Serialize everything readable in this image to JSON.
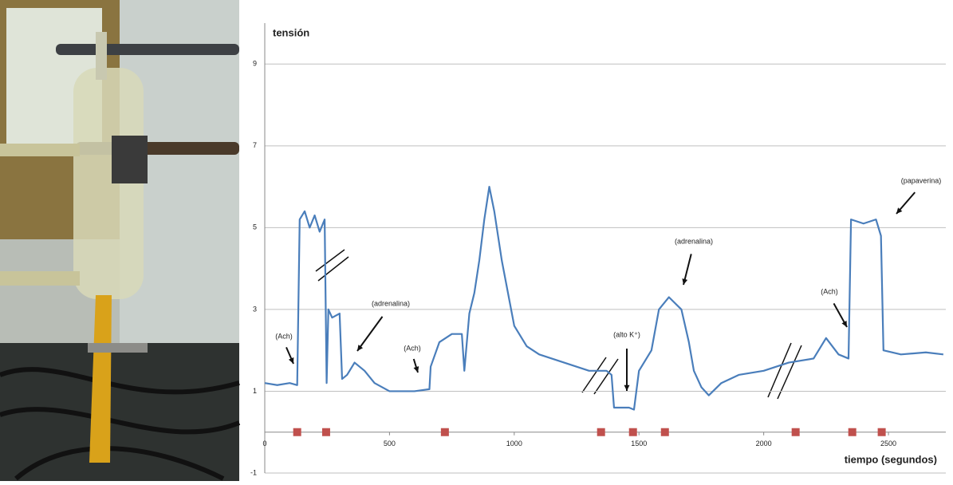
{
  "chart_data": {
    "type": "line",
    "ylabel": "tensión",
    "xlabel": "tiempo (segundos)",
    "x": [
      0,
      50,
      100,
      130,
      140,
      160,
      180,
      200,
      220,
      240,
      248,
      255,
      270,
      300,
      310,
      330,
      360,
      400,
      440,
      500,
      600,
      660,
      665,
      700,
      750,
      790,
      800,
      820,
      840,
      860,
      880,
      900,
      920,
      950,
      1000,
      1050,
      1100,
      1200,
      1300,
      1370,
      1390,
      1400,
      1460,
      1480,
      1500,
      1550,
      1580,
      1620,
      1670,
      1700,
      1720,
      1750,
      1780,
      1830,
      1900,
      2000,
      2100,
      2200,
      2250,
      2300,
      2340,
      2350,
      2400,
      2450,
      2470,
      2480,
      2550,
      2650,
      2720
    ],
    "values": [
      1.2,
      1.15,
      1.2,
      1.15,
      5.2,
      5.4,
      5.0,
      5.3,
      4.9,
      5.2,
      1.2,
      3.0,
      2.8,
      2.9,
      1.3,
      1.4,
      1.7,
      1.5,
      1.2,
      1.0,
      1.0,
      1.05,
      1.6,
      2.2,
      2.4,
      2.4,
      1.5,
      2.9,
      3.4,
      4.2,
      5.2,
      6.0,
      5.4,
      4.2,
      2.6,
      2.1,
      1.9,
      1.7,
      1.5,
      1.5,
      1.4,
      0.6,
      0.6,
      0.55,
      1.5,
      2.0,
      3.0,
      3.3,
      3.0,
      2.2,
      1.5,
      1.1,
      0.9,
      1.2,
      1.4,
      1.5,
      1.7,
      1.8,
      2.3,
      1.9,
      1.8,
      5.2,
      5.1,
      5.2,
      4.8,
      2.0,
      1.9,
      1.95,
      1.9
    ],
    "color": "#4a7ebb",
    "markers": {
      "x": [
        130,
        246,
        722,
        1348,
        1476,
        1604,
        2128,
        2355,
        2473
      ],
      "color": "#c0504d"
    },
    "xlim": [
      0,
      2730
    ],
    "ylim": [
      -1,
      10
    ],
    "xticks": [
      0,
      500,
      1000,
      1500,
      2000,
      2500
    ],
    "yticks": [
      -1,
      1,
      3,
      5,
      7,
      9
    ],
    "grid": true,
    "annotations": [
      "(Ach)",
      "(adrenalina)",
      "(Ach)",
      "(alto K⁺)",
      "(adrenalina)",
      "(Ach)",
      "(papaverina)"
    ]
  }
}
